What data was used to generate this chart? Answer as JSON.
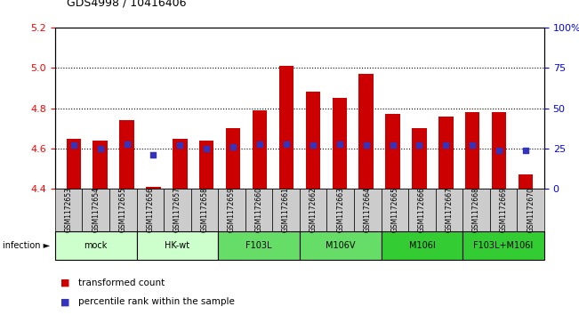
{
  "title": "GDS4998 / 10416406",
  "samples": [
    "GSM1172653",
    "GSM1172654",
    "GSM1172655",
    "GSM1172656",
    "GSM1172657",
    "GSM1172658",
    "GSM1172659",
    "GSM1172660",
    "GSM1172661",
    "GSM1172662",
    "GSM1172663",
    "GSM1172664",
    "GSM1172665",
    "GSM1172666",
    "GSM1172667",
    "GSM1172668",
    "GSM1172669",
    "GSM1172670"
  ],
  "transformed_count": [
    4.65,
    4.64,
    4.74,
    4.41,
    4.65,
    4.64,
    4.7,
    4.79,
    5.01,
    4.88,
    4.85,
    4.97,
    4.77,
    4.7,
    4.76,
    4.78,
    4.78,
    4.47
  ],
  "percentile_rank": [
    27,
    25,
    28,
    21,
    27,
    25,
    26,
    28,
    28,
    27,
    28,
    27,
    27,
    27,
    27,
    27,
    24,
    24
  ],
  "ylim_left": [
    4.4,
    5.2
  ],
  "ylim_right": [
    0,
    100
  ],
  "yticks_left": [
    4.4,
    4.6,
    4.8,
    5.0,
    5.2
  ],
  "yticks_right": [
    0,
    25,
    50,
    75,
    100
  ],
  "ytick_labels_right": [
    "0",
    "25",
    "50",
    "75",
    "100%"
  ],
  "bar_color": "#cc0000",
  "dot_color": "#3333bb",
  "bar_width": 0.55,
  "groups": [
    {
      "label": "mock",
      "start": 0,
      "end": 2,
      "color": "#ccffcc"
    },
    {
      "label": "HK-wt",
      "start": 3,
      "end": 5,
      "color": "#ccffcc"
    },
    {
      "label": "F103L",
      "start": 6,
      "end": 8,
      "color": "#66dd66"
    },
    {
      "label": "M106V",
      "start": 9,
      "end": 11,
      "color": "#66dd66"
    },
    {
      "label": "M106I",
      "start": 12,
      "end": 14,
      "color": "#33cc33"
    },
    {
      "label": "F103L+M106I",
      "start": 15,
      "end": 17,
      "color": "#33cc33"
    }
  ],
  "sample_cell_color": "#cccccc",
  "infection_label": "infection ►",
  "legend_items": [
    {
      "color": "#cc0000",
      "label": "transformed count"
    },
    {
      "color": "#3333bb",
      "label": "percentile rank within the sample"
    }
  ]
}
